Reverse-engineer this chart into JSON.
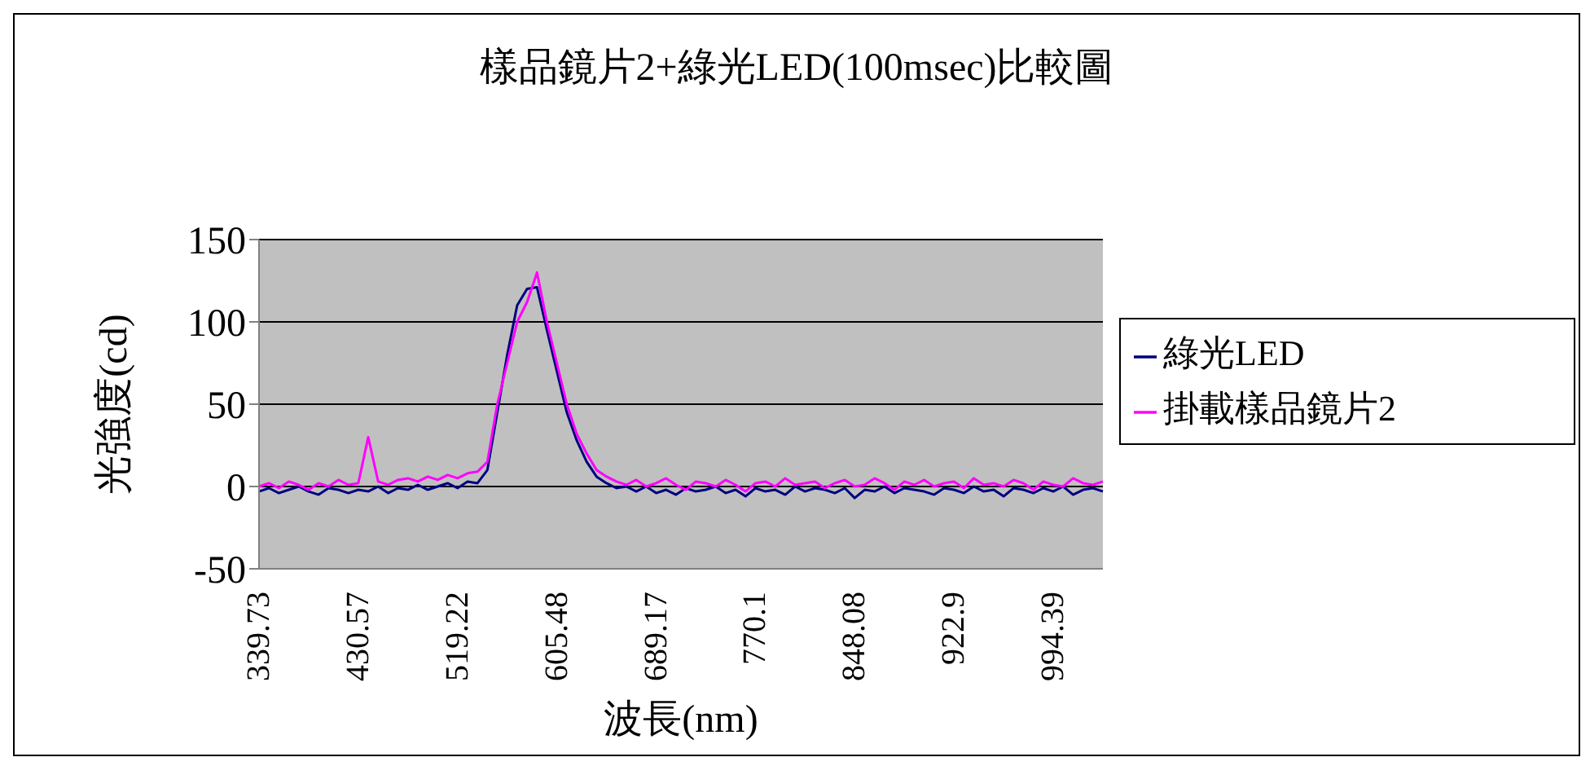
{
  "chart_data": {
    "type": "line",
    "title": "樣品鏡片2+綠光LED(100msec)比較圖",
    "xlabel": "波長(nm)",
    "ylabel": "光強度(cd)",
    "categories": [
      "339.73",
      null,
      null,
      null,
      null,
      null,
      null,
      null,
      null,
      null,
      "430.57",
      null,
      null,
      null,
      null,
      null,
      null,
      null,
      null,
      null,
      "519.22",
      null,
      null,
      null,
      null,
      null,
      null,
      null,
      null,
      null,
      "605.48",
      null,
      null,
      null,
      null,
      null,
      null,
      null,
      null,
      null,
      "689.17",
      null,
      null,
      null,
      null,
      null,
      null,
      null,
      null,
      null,
      "770.1",
      null,
      null,
      null,
      null,
      null,
      null,
      null,
      null,
      null,
      "848.08",
      null,
      null,
      null,
      null,
      null,
      null,
      null,
      null,
      null,
      "922.9",
      null,
      null,
      null,
      null,
      null,
      null,
      null,
      null,
      null,
      "994.39",
      null,
      null,
      null,
      null,
      null
    ],
    "series": [
      {
        "name": "綠光LED",
        "color": "#000080",
        "values": [
          -3,
          -1,
          -4,
          -2,
          0,
          -3,
          -5,
          -1,
          -2,
          -4,
          -2,
          -3,
          0,
          -4,
          -1,
          -2,
          1,
          -2,
          0,
          2,
          -1,
          3,
          2,
          10,
          45,
          80,
          110,
          120,
          121,
          95,
          70,
          45,
          28,
          15,
          6,
          2,
          -1,
          0,
          -3,
          0,
          -4,
          -2,
          -5,
          -1,
          -3,
          -2,
          0,
          -4,
          -2,
          -6,
          -1,
          -3,
          -2,
          -5,
          0,
          -3,
          -1,
          -2,
          -4,
          -1,
          -7,
          -2,
          -3,
          0,
          -4,
          -1,
          -2,
          -3,
          -5,
          -1,
          -2,
          -4,
          0,
          -3,
          -2,
          -6,
          -1,
          -2,
          -4,
          -1,
          -3,
          0,
          -5,
          -2,
          -1,
          -3
        ]
      },
      {
        "name": "掛載樣品鏡片2",
        "color": "#ff00ff",
        "values": [
          0,
          2,
          -1,
          3,
          1,
          -2,
          2,
          0,
          4,
          1,
          2,
          30,
          3,
          1,
          4,
          5,
          3,
          6,
          4,
          7,
          5,
          8,
          9,
          15,
          50,
          75,
          100,
          112,
          130,
          100,
          75,
          50,
          32,
          20,
          10,
          6,
          3,
          1,
          4,
          0,
          2,
          5,
          1,
          -2,
          3,
          2,
          0,
          4,
          1,
          -3,
          2,
          3,
          0,
          5,
          1,
          2,
          3,
          -1,
          2,
          4,
          0,
          1,
          5,
          2,
          -2,
          3,
          1,
          4,
          0,
          2,
          3,
          -1,
          5,
          1,
          2,
          0,
          4,
          2,
          -2,
          3,
          1,
          0,
          5,
          2,
          1,
          3
        ]
      }
    ],
    "ylim": [
      -50,
      150
    ],
    "yticks": [
      -50,
      0,
      50,
      100,
      150
    ],
    "grid": "y",
    "legend": "right",
    "marker": "none",
    "line_style": "solid"
  }
}
